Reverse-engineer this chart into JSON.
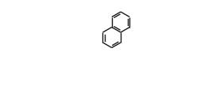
{
  "bg": "#ffffff",
  "bond_color": "#1a1a1a",
  "N_color": "#2222bb",
  "O_color": "#bb2200",
  "Cl_color": "#336600",
  "H_color": "#4a4a00",
  "lw": 1.0,
  "fs": 6.5
}
